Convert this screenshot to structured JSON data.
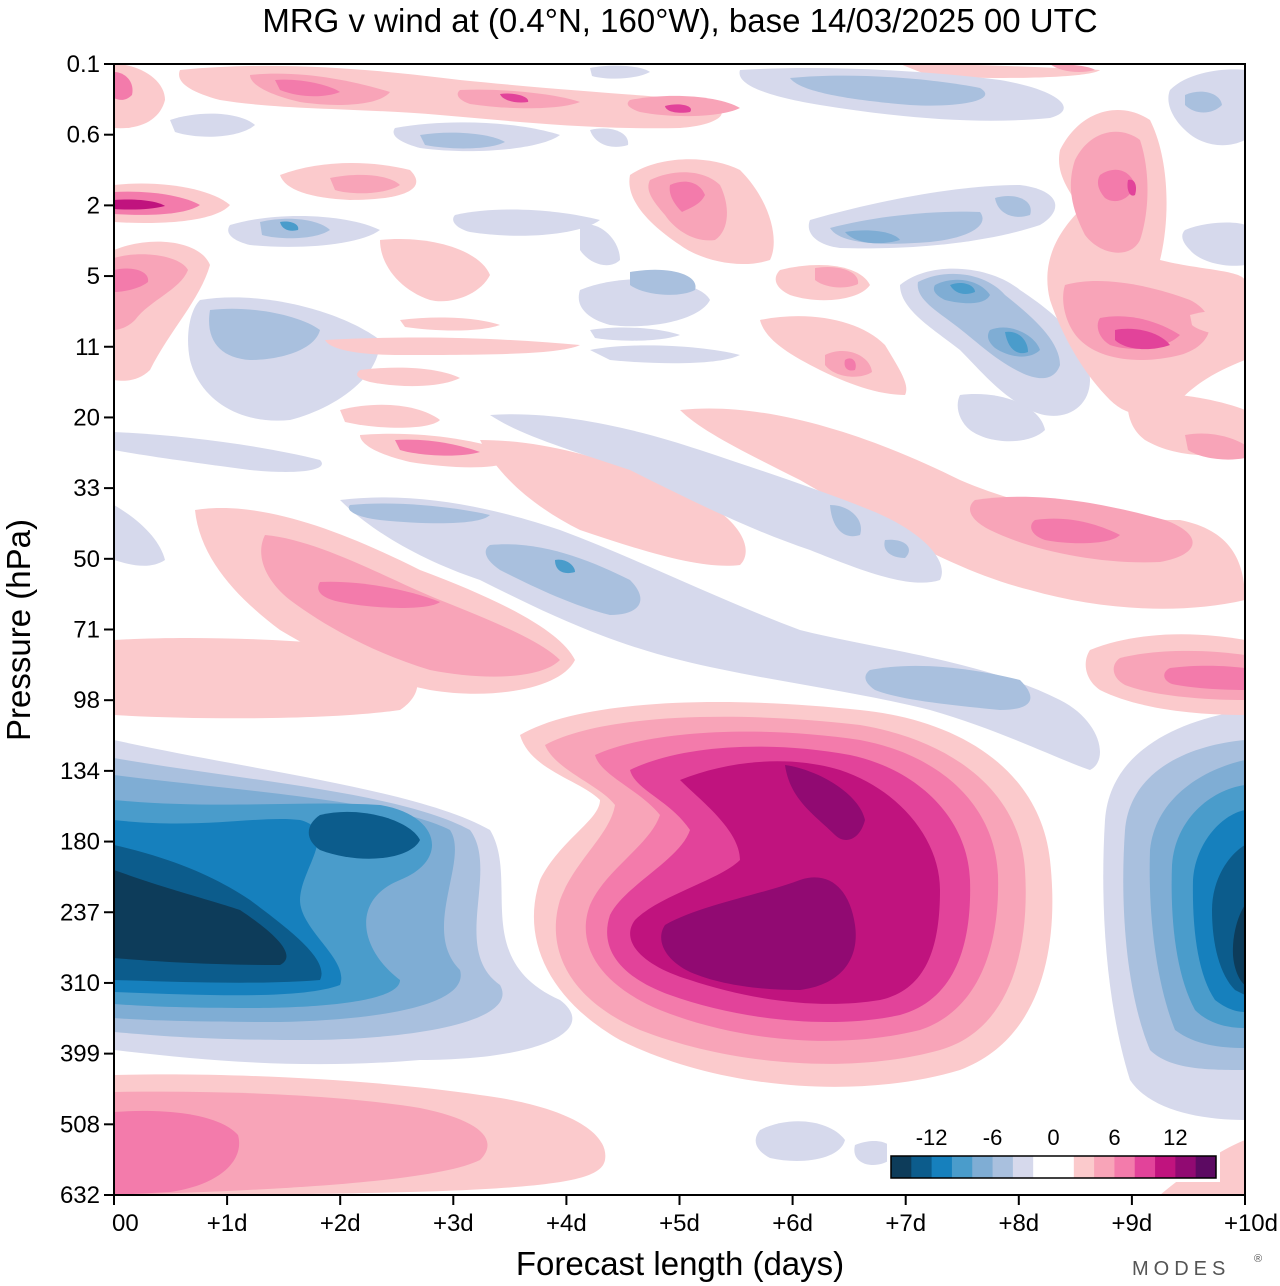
{
  "chart_data": {
    "type": "heatmap",
    "title": "MRG v wind at (0.4°N, 160°W),  base 14/03/2025  00 UTC",
    "xlabel": "Forecast length (days)",
    "ylabel": "Pressure (hPa)",
    "x_ticks": [
      "00",
      "+1d",
      "+2d",
      "+3d",
      "+4d",
      "+5d",
      "+6d",
      "+7d",
      "+8d",
      "+9d",
      "+10d"
    ],
    "y_ticks": [
      "0.1",
      "0.6",
      "2",
      "5",
      "11",
      "20",
      "33",
      "50",
      "71",
      "98",
      "134",
      "180",
      "237",
      "310",
      "399",
      "508",
      "632"
    ],
    "xlim": [
      0,
      10
    ],
    "colorbar": {
      "tick_labels": [
        "-12",
        "-6",
        "0",
        "6",
        "12"
      ],
      "levels": [
        -16,
        -14,
        -12,
        -10,
        -8,
        -6,
        -4,
        -2,
        2,
        4,
        6,
        8,
        10,
        12,
        14,
        16
      ],
      "colors": [
        "#0d3c5a",
        "#0c5c8c",
        "#1680bd",
        "#4a9ccb",
        "#7fadd4",
        "#a9c0de",
        "#d6d9ec",
        "#ffffff",
        "#ffffff",
        "#fbcacc",
        "#f8a4b8",
        "#f37bab",
        "#e2439a",
        "#c0137e",
        "#910a72",
        "#5c0a62"
      ]
    },
    "features": [
      {
        "name": "negative core",
        "x_days": 1.0,
        "pressure_hpa": 270,
        "value": -16
      },
      {
        "name": "positive core",
        "x_days": 5.8,
        "pressure_hpa": 260,
        "value": 16
      },
      {
        "name": "negative core",
        "x_days": 10.0,
        "pressure_hpa": 260,
        "value": -14
      },
      {
        "name": "positive band",
        "x_days": 2.8,
        "pressure_hpa": 60,
        "value": 8
      },
      {
        "name": "positive band",
        "x_days": 8.7,
        "pressure_hpa": 40,
        "value": 8
      },
      {
        "name": "positive",
        "x_days": 0.5,
        "pressure_hpa": 560,
        "value": 8
      },
      {
        "name": "negative",
        "x_days": 7.9,
        "pressure_hpa": 9,
        "value": -8
      }
    ]
  },
  "brand": "MODES",
  "brand_mark": "®"
}
